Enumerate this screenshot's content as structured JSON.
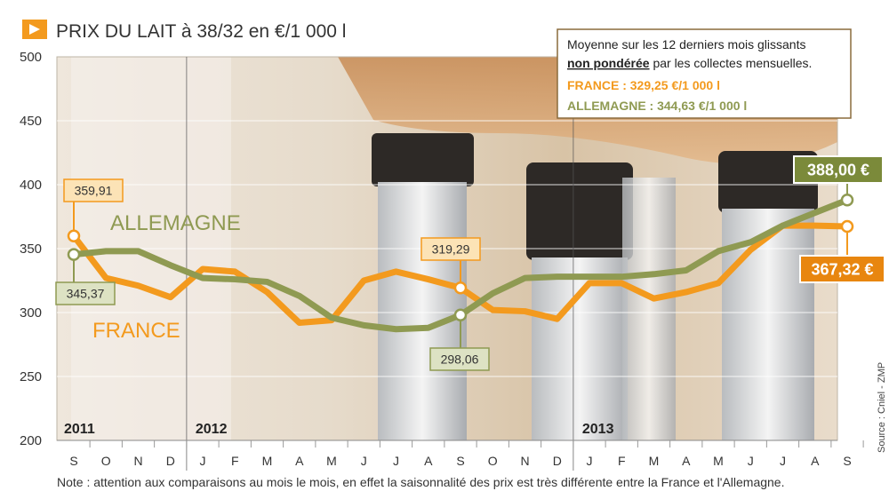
{
  "header": {
    "title": "PRIX DU LAIT à 38/32 en €/1 000 l",
    "icon": "play-arrow-icon"
  },
  "info_box": {
    "line1": "Moyenne sur les 12 derniers mois glissants",
    "line2_bold": "non pondérée",
    "line2_rest": " par les collectes mensuelles.",
    "france": "FRANCE : 329,25 €/1 000 l",
    "allemagne": "ALLEMAGNE : 344,63 €/1 000 l"
  },
  "note": "Note : attention aux comparaisons au mois le mois, en effet la saisonnalité des prix est très différente entre la France et l'Allemagne.",
  "source": "Source : Cniel - ZMP",
  "colors": {
    "france": "#F39A1E",
    "allemagne": "#8F9A52",
    "france_dark": "#E8860F",
    "allemagne_dark": "#7B8A3A",
    "accent": "#F39A1E"
  },
  "chart_data": {
    "type": "line",
    "y_ticks": [
      "500",
      "450",
      "400",
      "350",
      "300",
      "250",
      "200"
    ],
    "ylim": [
      200,
      500
    ],
    "years": [
      {
        "label": "2011",
        "index": 0
      },
      {
        "label": "2012",
        "index": 4
      },
      {
        "label": "2013",
        "index": 16
      }
    ],
    "categories": [
      "S",
      "O",
      "N",
      "D",
      "J",
      "F",
      "M",
      "A",
      "M",
      "J",
      "J",
      "A",
      "S",
      "O",
      "N",
      "D",
      "J",
      "F",
      "M",
      "A",
      "M",
      "J",
      "J",
      "A",
      "S"
    ],
    "series": [
      {
        "name": "FRANCE",
        "color": "#F39A1E",
        "values": [
          359.91,
          327,
          321,
          312,
          334,
          332,
          316,
          292,
          294,
          325,
          332,
          326,
          319.29,
          302,
          301,
          295,
          323,
          323,
          311,
          316,
          323,
          349,
          368,
          368,
          367.32
        ]
      },
      {
        "name": "ALLEMAGNE",
        "color": "#8F9A52",
        "values": [
          345.37,
          348,
          348,
          337,
          327,
          326,
          324,
          313,
          296,
          290,
          287,
          288,
          298.06,
          315,
          327,
          328,
          328,
          328,
          330,
          333,
          348,
          355,
          368,
          378,
          388.0
        ]
      }
    ],
    "callouts": [
      {
        "label": "359,91",
        "series": 0,
        "index": 0
      },
      {
        "label": "345,37",
        "series": 1,
        "index": 0
      },
      {
        "label": "319,29",
        "series": 0,
        "index": 12
      },
      {
        "label": "298,06",
        "series": 1,
        "index": 12
      },
      {
        "label": "388,00 €",
        "series": 1,
        "index": 24
      },
      {
        "label": "367,32 €",
        "series": 0,
        "index": 24
      }
    ],
    "series_labels": {
      "france": "FRANCE",
      "allemagne": "ALLEMAGNE"
    },
    "grid": true
  }
}
